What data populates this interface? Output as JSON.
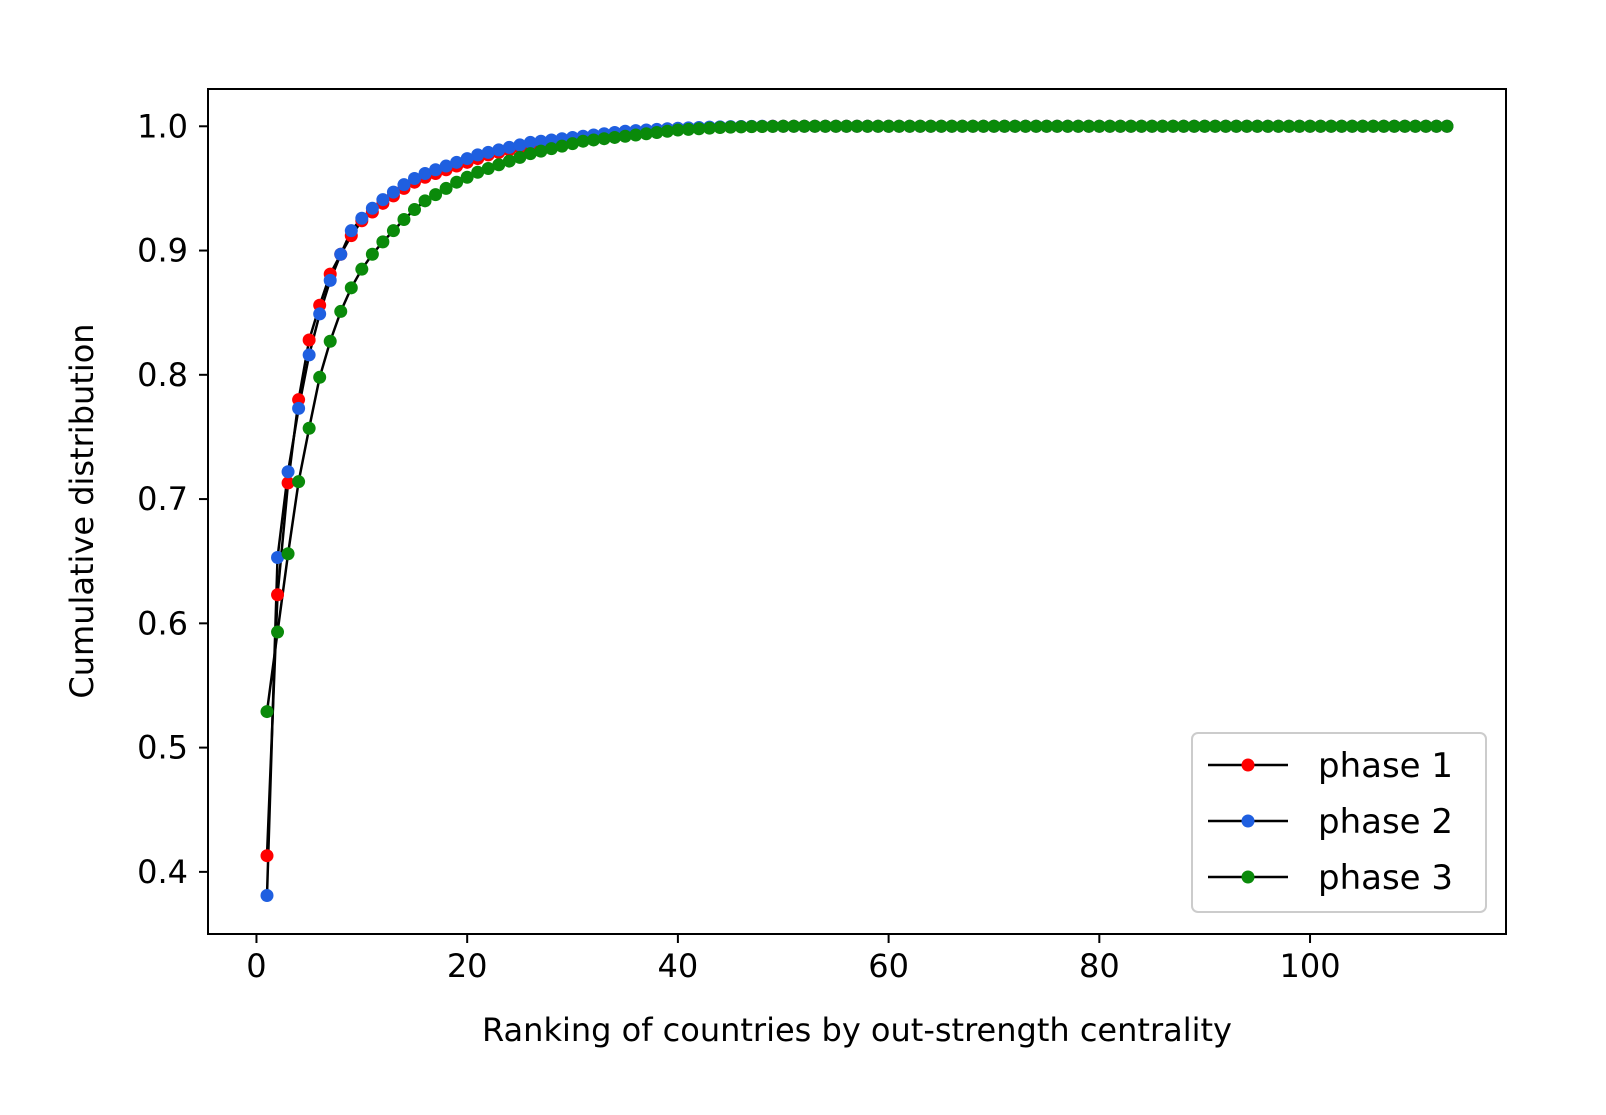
{
  "chart_data": {
    "type": "line",
    "title": "",
    "xlabel": "Ranking of countries by out-strength centrality",
    "ylabel": "Cumulative distribution",
    "xlim": [
      -4.6,
      118.6
    ],
    "ylim": [
      0.35,
      1.03
    ],
    "xticks": [
      0,
      20,
      40,
      60,
      80,
      100
    ],
    "xtick_labels": [
      "0",
      "20",
      "40",
      "60",
      "80",
      "100"
    ],
    "yticks": [
      0.4,
      0.5,
      0.6,
      0.7,
      0.8,
      0.9,
      1.0
    ],
    "ytick_labels": [
      "0.4",
      "0.5",
      "0.6",
      "0.7",
      "0.8",
      "0.9",
      "1.0"
    ],
    "grid": false,
    "legend_position": "lower right",
    "line_color": "#000000",
    "x_max": 113,
    "series": [
      {
        "name": "phase 1",
        "color": "#ff0000",
        "values_head": [
          0.413,
          0.623,
          0.713,
          0.78,
          0.828,
          0.856,
          0.881,
          0.897,
          0.912,
          0.924,
          0.931,
          0.938,
          0.944,
          0.95,
          0.955,
          0.959,
          0.962,
          0.965,
          0.968,
          0.971,
          0.974,
          0.977,
          0.979,
          0.981,
          0.983,
          0.985,
          0.987,
          0.988,
          0.989,
          0.99,
          0.991,
          0.992,
          0.993,
          0.994,
          0.995,
          0.996,
          0.9965,
          0.997,
          0.9975,
          0.998,
          0.9984,
          0.9987,
          0.999,
          0.9993,
          0.9995,
          0.9997,
          0.9998,
          0.9999
        ],
        "tail_value": 1.0
      },
      {
        "name": "phase 2",
        "color": "#1f5fe0",
        "values_head": [
          0.381,
          0.653,
          0.722,
          0.773,
          0.816,
          0.849,
          0.876,
          0.897,
          0.916,
          0.926,
          0.934,
          0.941,
          0.947,
          0.953,
          0.958,
          0.962,
          0.965,
          0.968,
          0.971,
          0.974,
          0.977,
          0.979,
          0.981,
          0.983,
          0.985,
          0.987,
          0.988,
          0.989,
          0.99,
          0.991,
          0.992,
          0.993,
          0.994,
          0.995,
          0.996,
          0.9965,
          0.997,
          0.9975,
          0.998,
          0.9984,
          0.9987,
          0.999,
          0.9993,
          0.9995,
          0.9997,
          0.9998,
          0.9999
        ],
        "tail_value": 1.0
      },
      {
        "name": "phase 3",
        "color": "#0a8a0a",
        "values_head": [
          0.529,
          0.593,
          0.656,
          0.714,
          0.757,
          0.798,
          0.827,
          0.851,
          0.87,
          0.885,
          0.897,
          0.907,
          0.916,
          0.925,
          0.933,
          0.94,
          0.945,
          0.95,
          0.955,
          0.959,
          0.963,
          0.966,
          0.969,
          0.972,
          0.975,
          0.978,
          0.98,
          0.982,
          0.984,
          0.986,
          0.988,
          0.989,
          0.99,
          0.991,
          0.992,
          0.993,
          0.994,
          0.995,
          0.996,
          0.997,
          0.9975,
          0.998,
          0.9985,
          0.999,
          0.9993,
          0.9995,
          0.9997,
          0.9998,
          0.9999
        ],
        "tail_value": 1.0
      }
    ]
  }
}
